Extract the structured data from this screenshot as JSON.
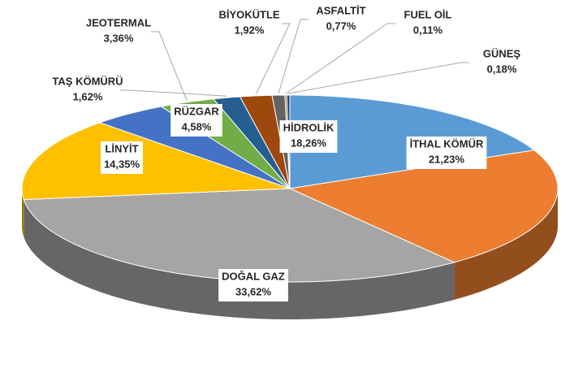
{
  "chart_data": {
    "type": "pie3d",
    "categories": [
      "HİDROLİK",
      "İTHAL KÖMÜR",
      "DOĞAL GAZ",
      "LİNYİT",
      "RÜZGAR",
      "JEOTERMAL",
      "TAŞ KÖMÜRÜ",
      "BİYOKÜTLE",
      "ASFALTİT",
      "FUEL OİL",
      "GÜNEŞ"
    ],
    "values": [
      18.26,
      21.23,
      33.62,
      14.35,
      4.58,
      3.36,
      1.62,
      1.92,
      0.77,
      0.11,
      0.18
    ],
    "value_labels": [
      "18,26%",
      "21,23%",
      "33,62%",
      "14,35%",
      "4,58%",
      "3,36%",
      "1,62%",
      "1,92%",
      "0,77%",
      "0,11%",
      "0,18%"
    ],
    "colors": [
      "#5b9bd5",
      "#ed7d31",
      "#a5a5a5",
      "#ffc000",
      "#4472c4",
      "#70ad47",
      "#255e91",
      "#9e480e",
      "#636363",
      "#997300",
      "#264478"
    ]
  }
}
